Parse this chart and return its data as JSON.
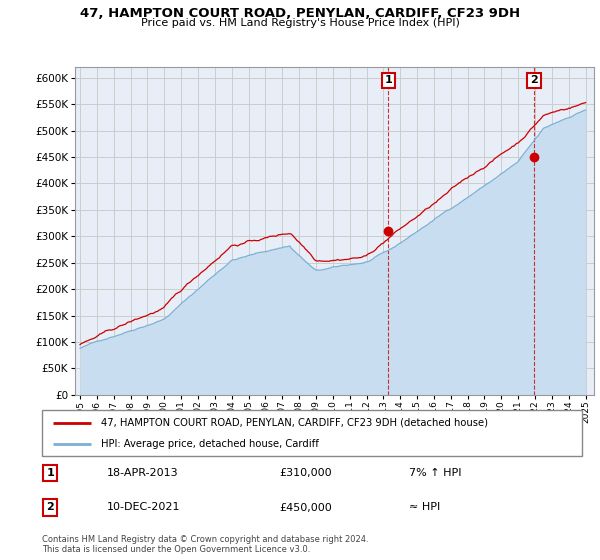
{
  "title": "47, HAMPTON COURT ROAD, PENYLAN, CARDIFF, CF23 9DH",
  "subtitle": "Price paid vs. HM Land Registry's House Price Index (HPI)",
  "ylabel_ticks": [
    0,
    50000,
    100000,
    150000,
    200000,
    250000,
    300000,
    350000,
    400000,
    450000,
    500000,
    550000,
    600000
  ],
  "ylim": [
    0,
    620000
  ],
  "xlim_start": 1994.7,
  "xlim_end": 2025.5,
  "background_color": "#ffffff",
  "plot_bg_color": "#e8eef8",
  "grid_color": "#cccccc",
  "hpi_color": "#7ab0d4",
  "hpi_fill_color": "#c8ddf0",
  "price_color": "#cc0000",
  "transaction1_year": 2013.29,
  "transaction1_price": 310000,
  "transaction2_year": 2021.94,
  "transaction2_price": 450000,
  "legend_line1": "47, HAMPTON COURT ROAD, PENYLAN, CARDIFF, CF23 9DH (detached house)",
  "legend_line2": "HPI: Average price, detached house, Cardiff",
  "t1_date": "18-APR-2013",
  "t1_amount": "£310,000",
  "t1_vs_hpi": "7% ↑ HPI",
  "t2_date": "10-DEC-2021",
  "t2_amount": "£450,000",
  "t2_vs_hpi": "≈ HPI",
  "footer": "Contains HM Land Registry data © Crown copyright and database right 2024.\nThis data is licensed under the Open Government Licence v3.0."
}
